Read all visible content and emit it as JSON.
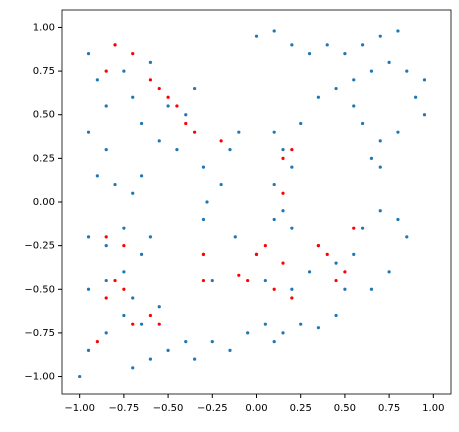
{
  "chart_data": {
    "type": "scatter",
    "xlim": [
      -1.1,
      1.1
    ],
    "ylim": [
      -1.1,
      1.1
    ],
    "xticks": [
      {
        "value": -1,
        "label": "−1.00"
      },
      {
        "value": -0.75,
        "label": "−0.75"
      },
      {
        "value": -0.5,
        "label": "−0.50"
      },
      {
        "value": -0.25,
        "label": "−0.25"
      },
      {
        "value": 0,
        "label": "0.00"
      },
      {
        "value": 0.25,
        "label": "0.25"
      },
      {
        "value": 0.5,
        "label": "0.50"
      },
      {
        "value": 0.75,
        "label": "0.75"
      },
      {
        "value": 1,
        "label": "1.00"
      }
    ],
    "yticks": [
      {
        "value": -1,
        "label": "−1.00"
      },
      {
        "value": -0.75,
        "label": "−0.75"
      },
      {
        "value": -0.5,
        "label": "−0.50"
      },
      {
        "value": -0.25,
        "label": "−0.25"
      },
      {
        "value": 0,
        "label": "0.00"
      },
      {
        "value": 0.25,
        "label": "0.25"
      },
      {
        "value": 0.5,
        "label": "0.50"
      },
      {
        "value": 0.75,
        "label": "0.75"
      },
      {
        "value": 1,
        "label": "1.00"
      }
    ],
    "series": [
      {
        "color": "#1f77b4",
        "x": [
          -0.95,
          -0.9,
          -0.85,
          -0.8,
          -0.75,
          -0.7,
          -0.65,
          -0.6,
          -0.55,
          -0.5,
          -0.45,
          -0.4,
          -0.35,
          -0.3,
          -0.95,
          -0.85,
          -0.9,
          -0.8,
          -0.7,
          -0.65,
          -0.95,
          -0.85,
          -0.75,
          -0.65,
          -0.6,
          -0.95,
          -0.85,
          -0.75,
          -0.7,
          -0.95,
          -0.85,
          -0.75,
          -0.65,
          -0.55,
          -1.0,
          -0.7,
          -0.6,
          -0.5,
          -0.4,
          -0.35,
          -0.25,
          -0.15,
          -0.05,
          0.05,
          0.15,
          0.25,
          0.35,
          0.45,
          0.1,
          -0.3,
          -0.28,
          -0.3,
          -0.25,
          -0.2,
          -0.15,
          -0.1,
          -0.12,
          0.1,
          0.15,
          0.2,
          0.1,
          0.15,
          0.2,
          0.1,
          0.25,
          0.0,
          0.05,
          0.2,
          0.3,
          0.35,
          0.45,
          0.5,
          0.55,
          0.6,
          0.7,
          0.75,
          0.65,
          0.8,
          0.85,
          0.0,
          0.1,
          0.2,
          0.3,
          0.4,
          0.5,
          0.6,
          0.7,
          0.8,
          0.35,
          0.45,
          0.55,
          0.65,
          0.75,
          0.85,
          0.95,
          0.9,
          0.95,
          0.6,
          0.7,
          0.8,
          0.55,
          0.7,
          0.65
        ],
        "y": [
          0.85,
          0.7,
          0.55,
          0.9,
          0.75,
          0.6,
          0.45,
          0.8,
          0.35,
          0.55,
          0.3,
          0.5,
          0.65,
          0.2,
          0.4,
          0.3,
          0.15,
          0.1,
          0.05,
          0.15,
          -0.2,
          -0.25,
          -0.15,
          -0.3,
          -0.2,
          -0.5,
          -0.45,
          -0.4,
          -0.55,
          -0.85,
          -0.75,
          -0.65,
          -0.7,
          -0.6,
          -1.0,
          -0.95,
          -0.9,
          -0.85,
          -0.8,
          -0.9,
          -0.8,
          -0.85,
          -0.75,
          -0.7,
          -0.75,
          -0.7,
          -0.72,
          -0.65,
          -0.8,
          -0.1,
          0.0,
          -0.3,
          -0.45,
          0.1,
          0.3,
          0.4,
          -0.2,
          0.4,
          0.3,
          0.2,
          0.1,
          -0.05,
          -0.15,
          -0.1,
          0.45,
          -0.3,
          -0.45,
          -0.5,
          -0.4,
          -0.25,
          -0.35,
          -0.5,
          -0.3,
          -0.15,
          -0.05,
          -0.4,
          -0.5,
          -0.1,
          -0.2,
          0.95,
          0.98,
          0.9,
          0.85,
          0.9,
          0.85,
          0.9,
          0.95,
          0.98,
          0.6,
          0.65,
          0.7,
          0.75,
          0.8,
          0.75,
          0.7,
          0.6,
          0.5,
          0.45,
          0.35,
          0.4,
          0.55,
          0.2,
          0.25
        ]
      },
      {
        "color": "red",
        "x": [
          -0.8,
          -0.7,
          -0.6,
          -0.5,
          -0.45,
          -0.4,
          -0.55,
          -0.85,
          -0.35,
          -0.2,
          0.15,
          0.2,
          0.15,
          -0.3,
          -0.3,
          -0.1,
          -0.05,
          0.0,
          0.05,
          0.15,
          0.1,
          0.2,
          0.35,
          0.4,
          0.45,
          0.5,
          0.55,
          -0.8,
          -0.75,
          -0.85,
          -0.7,
          -0.6,
          -0.55,
          -0.9,
          -0.75,
          -0.85
        ],
        "y": [
          0.9,
          0.85,
          0.7,
          0.6,
          0.55,
          0.45,
          0.65,
          0.75,
          0.4,
          0.35,
          0.25,
          0.3,
          0.05,
          -0.3,
          -0.45,
          -0.42,
          -0.45,
          -0.3,
          -0.25,
          -0.35,
          -0.5,
          -0.55,
          -0.25,
          -0.3,
          -0.45,
          -0.4,
          -0.15,
          -0.45,
          -0.5,
          -0.55,
          -0.7,
          -0.65,
          -0.7,
          -0.8,
          -0.25,
          -0.2
        ]
      }
    ]
  }
}
